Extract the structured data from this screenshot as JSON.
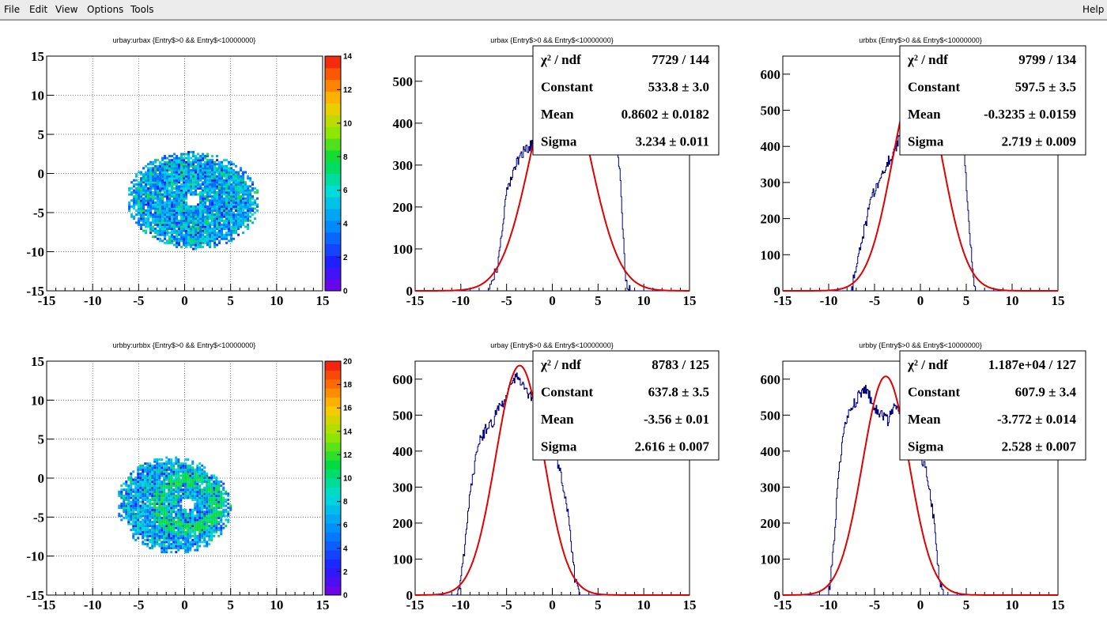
{
  "menu": {
    "file": "File",
    "edit": "Edit",
    "view": "View",
    "options": "Options",
    "tools": "Tools",
    "help": "Help"
  },
  "chart_data": [
    {
      "type": "heatmap",
      "title": "urbay:urbax {Entry$>0 && Entry$<10000000}",
      "xlim": [
        -15,
        15
      ],
      "ylim": [
        -15,
        15
      ],
      "xticks": [
        "-15",
        "-10",
        "-5",
        "0",
        "5",
        "10",
        "15"
      ],
      "yticks": [
        "-15",
        "-10",
        "-5",
        "0",
        "5",
        "10",
        "15"
      ],
      "zlim": [
        0,
        14
      ],
      "zticks": [
        "0",
        "2",
        "4",
        "6",
        "8",
        "10",
        "12",
        "14"
      ],
      "grid": true,
      "blob": {
        "cx": 0.8,
        "cy": -3.6,
        "rx": 7.2,
        "ry": 6.2,
        "hole": [
          0.8,
          -3.6
        ]
      }
    },
    {
      "type": "line",
      "title": "urbax {Entry$>0 && Entry$<10000000}",
      "xlim": [
        -15,
        15
      ],
      "ylim": [
        0,
        560
      ],
      "xticks": [
        "-15",
        "-10",
        "-5",
        "0",
        "5",
        "10",
        "15"
      ],
      "yticks": [
        "0",
        "100",
        "200",
        "300",
        "400",
        "500"
      ],
      "grid": false,
      "stats": [
        {
          "name": "χ² / ndf",
          "value": "7729 / 144"
        },
        {
          "name": "Constant",
          "value": "533.8 ± 3.0"
        },
        {
          "name": "Mean",
          "value": "0.8602 ± 0.0182"
        },
        {
          "name": "Sigma",
          "value": "3.234 ± 0.011"
        }
      ],
      "fit": {
        "constant": 533.8,
        "mean": 0.8602,
        "sigma": 3.234
      },
      "hist": {
        "x": [
          -7,
          -6,
          -5.5,
          -5,
          -4.5,
          -4,
          -3.5,
          -3,
          -2.5,
          -2,
          -1,
          0,
          1,
          2,
          3,
          4,
          5,
          6,
          6.5,
          7,
          7.5,
          8,
          8.5
        ],
        "y": [
          0,
          60,
          130,
          230,
          270,
          300,
          320,
          335,
          345,
          360,
          420,
          470,
          520,
          545,
          560,
          560,
          560,
          545,
          490,
          390,
          250,
          20,
          0
        ]
      }
    },
    {
      "type": "line",
      "title": "urbbx {Entry$>0 && Entry$<10000000}",
      "xlim": [
        -15,
        15
      ],
      "ylim": [
        0,
        650
      ],
      "xticks": [
        "-15",
        "-10",
        "-5",
        "0",
        "5",
        "10",
        "15"
      ],
      "yticks": [
        "0",
        "100",
        "200",
        "300",
        "400",
        "500",
        "600"
      ],
      "grid": false,
      "stats": [
        {
          "name": "χ² / ndf",
          "value": "9799 / 134"
        },
        {
          "name": "Constant",
          "value": "597.5 ± 3.5"
        },
        {
          "name": "Mean",
          "value": "-0.3235 ± 0.0159"
        },
        {
          "name": "Sigma",
          "value": "2.719 ± 0.009"
        }
      ],
      "fit": {
        "constant": 597.5,
        "mean": -0.3235,
        "sigma": 2.719
      },
      "hist": {
        "x": [
          -7.5,
          -7,
          -6.5,
          -6,
          -5.5,
          -5,
          -4.5,
          -4,
          -3.5,
          -3,
          -2.5,
          -2,
          -1,
          0,
          1,
          2,
          3,
          4,
          4.5,
          5,
          5.5,
          6
        ],
        "y": [
          0,
          70,
          130,
          180,
          240,
          280,
          300,
          330,
          360,
          380,
          410,
          470,
          560,
          640,
          650,
          650,
          650,
          620,
          480,
          300,
          120,
          0
        ]
      }
    },
    {
      "type": "heatmap",
      "title": "urbby:urbbx {Entry$>0 && Entry$<10000000}",
      "xlim": [
        -15,
        15
      ],
      "ylim": [
        -15,
        15
      ],
      "xticks": [
        "-15",
        "-10",
        "-5",
        "0",
        "5",
        "10",
        "15"
      ],
      "yticks": [
        "-15",
        "-10",
        "-5",
        "0",
        "5",
        "10",
        "15"
      ],
      "zlim": [
        0,
        20
      ],
      "zticks": [
        "0",
        "2",
        "4",
        "6",
        "8",
        "10",
        "12",
        "14",
        "16",
        "18",
        "20"
      ],
      "grid": true,
      "blob": {
        "cx": -1.3,
        "cy": -3.7,
        "rx": 6.2,
        "ry": 6.2,
        "hole": [
          0.2,
          -3.5
        ]
      }
    },
    {
      "type": "line",
      "title": "urbay {Entry$>0 && Entry$<10000000}",
      "xlim": [
        -15,
        15
      ],
      "ylim": [
        0,
        650
      ],
      "xticks": [
        "-15",
        "-10",
        "-5",
        "0",
        "5",
        "10",
        "15"
      ],
      "yticks": [
        "0",
        "100",
        "200",
        "300",
        "400",
        "500",
        "600"
      ],
      "grid": false,
      "stats": [
        {
          "name": "χ² / ndf",
          "value": "8783 / 125"
        },
        {
          "name": "Constant",
          "value": "637.8 ± 3.5"
        },
        {
          "name": "Mean",
          "value": "-3.56 ± 0.01"
        },
        {
          "name": "Sigma",
          "value": "2.616 ± 0.007"
        }
      ],
      "fit": {
        "constant": 637.8,
        "mean": -3.56,
        "sigma": 2.616
      },
      "hist": {
        "x": [
          -10.5,
          -10,
          -9.5,
          -9,
          -8.5,
          -8,
          -7.5,
          -7,
          -6.5,
          -6,
          -5.5,
          -5,
          -4.5,
          -4,
          -3.5,
          -3,
          -2.5,
          -2,
          -1.5,
          -1,
          -0.5,
          0,
          0.5,
          1,
          1.5,
          2,
          2.5,
          3
        ],
        "y": [
          0,
          40,
          150,
          280,
          360,
          420,
          450,
          470,
          480,
          510,
          530,
          560,
          580,
          610,
          600,
          570,
          560,
          540,
          510,
          490,
          460,
          420,
          380,
          330,
          270,
          160,
          40,
          0
        ]
      }
    },
    {
      "type": "line",
      "title": "urbby {Entry$>0 && Entry$<10000000}",
      "xlim": [
        -15,
        15
      ],
      "ylim": [
        0,
        650
      ],
      "xticks": [
        "-15",
        "-10",
        "-5",
        "0",
        "5",
        "10",
        "15"
      ],
      "yticks": [
        "0",
        "100",
        "200",
        "300",
        "400",
        "500",
        "600"
      ],
      "grid": false,
      "stats": [
        {
          "name": "χ² / ndf",
          "value": "1.187e+04 / 127"
        },
        {
          "name": "Constant",
          "value": "607.9 ± 3.4"
        },
        {
          "name": "Mean",
          "value": "-3.772 ± 0.014"
        },
        {
          "name": "Sigma",
          "value": "2.528 ± 0.007"
        }
      ],
      "fit": {
        "constant": 607.9,
        "mean": -3.772,
        "sigma": 2.528
      },
      "hist": {
        "x": [
          -10,
          -9.5,
          -9,
          -8.5,
          -8,
          -7.5,
          -7,
          -6.5,
          -6,
          -5.5,
          -5,
          -4.5,
          -4,
          -3.5,
          -3,
          -2.5,
          -2,
          -1.5,
          -1,
          -0.5,
          0,
          0.5,
          1,
          1.5,
          2,
          2.5
        ],
        "y": [
          0,
          120,
          300,
          430,
          500,
          530,
          540,
          560,
          570,
          550,
          520,
          510,
          500,
          480,
          520,
          510,
          500,
          470,
          460,
          420,
          380,
          360,
          300,
          200,
          60,
          0
        ]
      }
    }
  ]
}
